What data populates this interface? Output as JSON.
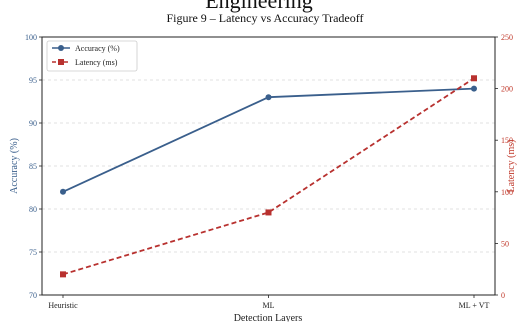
{
  "page_header": "Engineering",
  "chart_data": {
    "type": "line",
    "title": "Figure 9 – Latency vs Accuracy Tradeoff",
    "xlabel": "Detection Layers",
    "categories": [
      "Heuristic",
      "ML",
      "ML + VT"
    ],
    "y_left": {
      "label": "Accuracy (%)",
      "range": [
        70,
        100
      ],
      "ticks": [
        70,
        75,
        80,
        85,
        90,
        95,
        100
      ],
      "tick_labels": [
        "70",
        "75",
        "80",
        "85",
        "90",
        "95",
        "100"
      ],
      "color": "#3a5f8c"
    },
    "y_right": {
      "label": "Latency (ms)",
      "range": [
        0,
        250
      ],
      "ticks": [
        0,
        50,
        100,
        150,
        200,
        250
      ],
      "tick_labels": [
        "0",
        "50",
        "100",
        "150",
        "200",
        "250"
      ],
      "color": "#c0392b"
    },
    "series": [
      {
        "name": "Accuracy (%)",
        "axis": "left",
        "values": [
          82,
          93,
          94
        ],
        "color": "#3a5f8c",
        "line_style": "solid",
        "marker": "circle"
      },
      {
        "name": "Latency (ms)",
        "axis": "right",
        "values": [
          20,
          80,
          210
        ],
        "color": "#b8312f",
        "line_style": "dashed",
        "marker": "square"
      }
    ],
    "grid": "horizontal-dashed",
    "legend_position": "top-left"
  }
}
